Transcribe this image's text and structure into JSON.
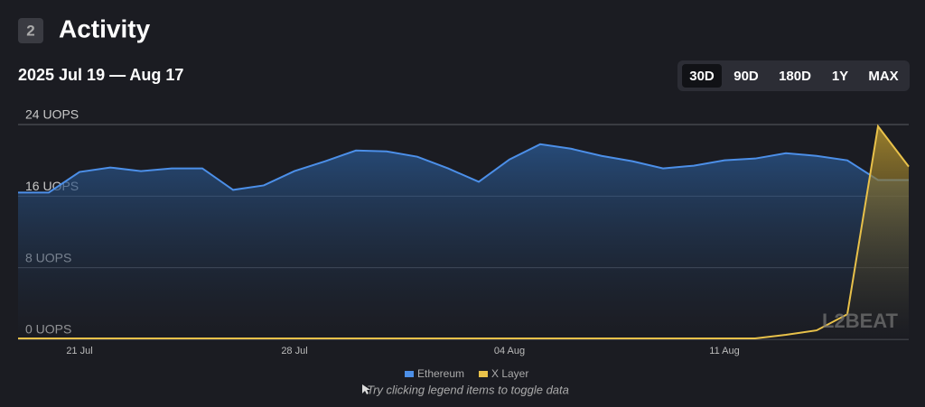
{
  "header": {
    "badge": "2",
    "title": "Activity",
    "range": "2025 Jul 19 — Aug 17",
    "buttons": [
      "30D",
      "90D",
      "180D",
      "1Y",
      "MAX"
    ],
    "selected": "30D"
  },
  "chart_data": {
    "type": "area",
    "categories": [
      null,
      null,
      "21 Jul",
      null,
      null,
      null,
      null,
      null,
      null,
      "28 Jul",
      null,
      null,
      null,
      null,
      null,
      null,
      "04 Aug",
      null,
      null,
      null,
      null,
      null,
      null,
      "11 Aug",
      null,
      null,
      null,
      null,
      null,
      null
    ],
    "series": [
      {
        "name": "Ethereum",
        "color": "#4c8fe8",
        "values": [
          16.4,
          16.4,
          18.7,
          19.2,
          18.8,
          19.1,
          19.1,
          16.7,
          17.2,
          18.8,
          19.9,
          21.1,
          21.0,
          20.4,
          19.1,
          17.6,
          20.1,
          21.8,
          21.3,
          20.5,
          19.9,
          19.1,
          19.4,
          20.0,
          20.2,
          20.8,
          20.5,
          20.0,
          17.8,
          17.8
        ]
      },
      {
        "name": "X Layer",
        "color": "#e8c14a",
        "values": [
          0.1,
          0.1,
          0.1,
          0.1,
          0.1,
          0.1,
          0.1,
          0.1,
          0.1,
          0.1,
          0.1,
          0.1,
          0.1,
          0.1,
          0.1,
          0.1,
          0.1,
          0.1,
          0.1,
          0.1,
          0.1,
          0.1,
          0.1,
          0.1,
          0.1,
          0.5,
          1.0,
          2.8,
          23.8,
          19.3
        ]
      }
    ],
    "ylim": [
      0,
      24
    ],
    "yticks": [
      {
        "value": 0,
        "label": "0 UOPS"
      },
      {
        "value": 8,
        "label": "8 UOPS"
      },
      {
        "value": 16,
        "label": "16 UOPS"
      },
      {
        "value": 24,
        "label": "24 UOPS"
      }
    ],
    "grid": true,
    "hint": "Try clicking legend items to toggle data",
    "watermark": "L2BEAT"
  }
}
